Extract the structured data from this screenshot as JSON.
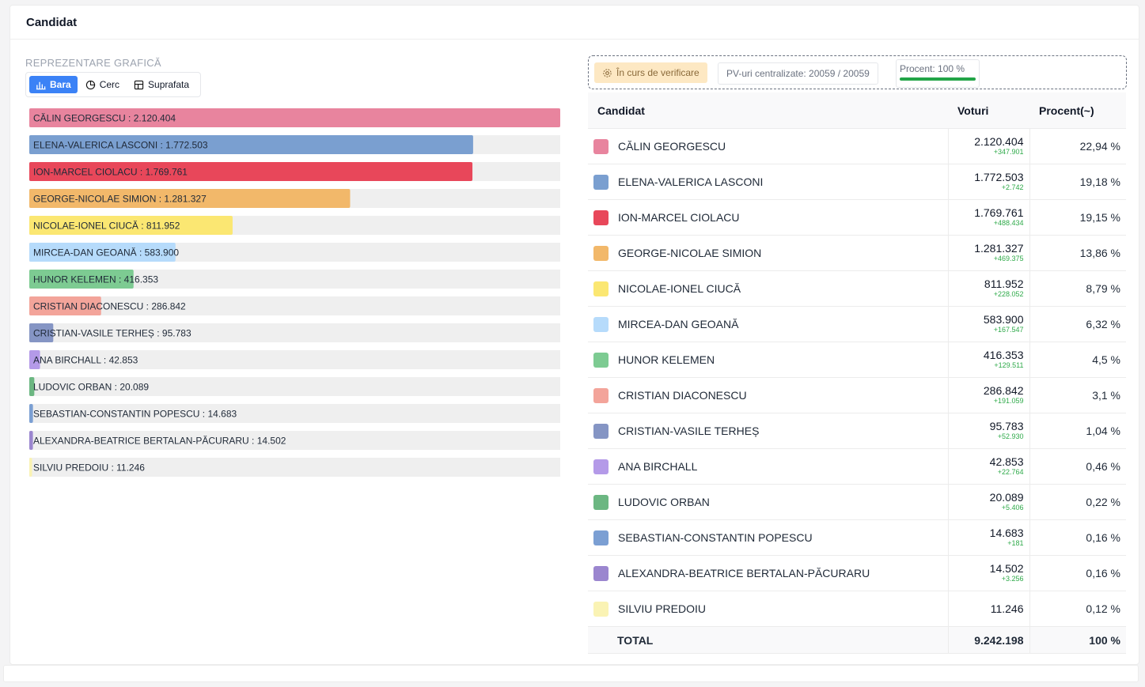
{
  "header": {
    "title": "Candidat"
  },
  "left": {
    "section_label": "REPREZENTARE GRAFICĂ",
    "view_buttons": [
      {
        "label": "Bara",
        "icon": "bar-chart-icon",
        "active": true
      },
      {
        "label": "Cerc",
        "icon": "pie-chart-icon",
        "active": false
      },
      {
        "label": "Suprafata",
        "icon": "grid-icon",
        "active": false
      }
    ]
  },
  "status": {
    "verification_label": "În curs de verificare",
    "pv_label": "PV-uri centralizate: 20059 / 20059",
    "percent_label": "Procent: 100 %",
    "percent_value": 100
  },
  "table": {
    "headers": {
      "candidate": "Candidat",
      "votes": "Voturi",
      "percent": "Procent(~)"
    },
    "rows": [
      {
        "name": "CĂLIN GEORGESCU",
        "votes": "2.120.404",
        "delta": "+347.901",
        "percent": "22,94 %",
        "color": "#e8849e"
      },
      {
        "name": "ELENA-VALERICA LASCONI",
        "votes": "1.772.503",
        "delta": "+2.742",
        "percent": "19,18 %",
        "color": "#7a9fd0"
      },
      {
        "name": "ION-MARCEL CIOLACU",
        "votes": "1.769.761",
        "delta": "+488.434",
        "percent": "19,15 %",
        "color": "#e8475a"
      },
      {
        "name": "GEORGE-NICOLAE SIMION",
        "votes": "1.281.327",
        "delta": "+469.375",
        "percent": "13,86 %",
        "color": "#f2b86a"
      },
      {
        "name": "NICOLAE-IONEL CIUCĂ",
        "votes": "811.952",
        "delta": "+228.052",
        "percent": "8,79 %",
        "color": "#fbe772"
      },
      {
        "name": "MIRCEA-DAN GEOANĂ",
        "votes": "583.900",
        "delta": "+167.547",
        "percent": "6,32 %",
        "color": "#b6dbfb"
      },
      {
        "name": "HUNOR KELEMEN",
        "votes": "416.353",
        "delta": "+129.511",
        "percent": "4,5 %",
        "color": "#7dcb92"
      },
      {
        "name": "CRISTIAN DIACONESCU",
        "votes": "286.842",
        "delta": "+191.059",
        "percent": "3,1 %",
        "color": "#f3a49a"
      },
      {
        "name": "CRISTIAN-VASILE TERHEȘ",
        "votes": "95.783",
        "delta": "+52.930",
        "percent": "1,04 %",
        "color": "#8595c4"
      },
      {
        "name": "ANA BIRCHALL",
        "votes": "42.853",
        "delta": "+22.764",
        "percent": "0,46 %",
        "color": "#b49ae8"
      },
      {
        "name": "LUDOVIC ORBAN",
        "votes": "20.089",
        "delta": "+5.406",
        "percent": "0,22 %",
        "color": "#6cb782"
      },
      {
        "name": "SEBASTIAN-CONSTANTIN POPESCU",
        "votes": "14.683",
        "delta": "+181",
        "percent": "0,16 %",
        "color": "#7b9fd3"
      },
      {
        "name": "ALEXANDRA-BEATRICE BERTALAN-PĂCURARU",
        "votes": "14.502",
        "delta": "+3.256",
        "percent": "0,16 %",
        "color": "#9b86cf"
      },
      {
        "name": "SILVIU PREDOIU",
        "votes": "11.246",
        "delta": "",
        "percent": "0,12 %",
        "color": "#faf3b4"
      }
    ],
    "total": {
      "label": "TOTAL",
      "votes": "9.242.198",
      "percent": "100 %"
    }
  },
  "chart_data": {
    "type": "bar",
    "orientation": "horizontal",
    "title": "",
    "xlabel": "",
    "ylabel": "",
    "categories": [
      "CĂLIN GEORGESCU",
      "ELENA-VALERICA LASCONI",
      "ION-MARCEL CIOLACU",
      "GEORGE-NICOLAE SIMION",
      "NICOLAE-IONEL CIUCĂ",
      "MIRCEA-DAN GEOANĂ",
      "HUNOR KELEMEN",
      "CRISTIAN DIACONESCU",
      "CRISTIAN-VASILE TERHEȘ",
      "ANA BIRCHALL",
      "LUDOVIC ORBAN",
      "SEBASTIAN-CONSTANTIN POPESCU",
      "ALEXANDRA-BEATRICE BERTALAN-PĂCURARU",
      "SILVIU PREDOIU"
    ],
    "values": [
      2120404,
      1772503,
      1769761,
      1281327,
      811952,
      583900,
      416353,
      286842,
      95783,
      42853,
      20089,
      14683,
      14502,
      11246
    ],
    "labels": [
      "CĂLIN GEORGESCU : 2.120.404",
      "ELENA-VALERICA LASCONI : 1.772.503",
      "ION-MARCEL CIOLACU : 1.769.761",
      "GEORGE-NICOLAE SIMION : 1.281.327",
      "NICOLAE-IONEL CIUCĂ : 811.952",
      "MIRCEA-DAN GEOANĂ : 583.900",
      "HUNOR KELEMEN : 416.353",
      "CRISTIAN DIACONESCU : 286.842",
      "CRISTIAN-VASILE TERHEȘ : 95.783",
      "ANA BIRCHALL : 42.853",
      "LUDOVIC ORBAN : 20.089",
      "SEBASTIAN-CONSTANTIN POPESCU : 14.683",
      "ALEXANDRA-BEATRICE BERTALAN-PĂCURARU : 14.502",
      "SILVIU PREDOIU : 11.246"
    ],
    "colors": [
      "#e8849e",
      "#7a9fd0",
      "#e8475a",
      "#f2b86a",
      "#fbe772",
      "#b6dbfb",
      "#7dcb92",
      "#f3a49a",
      "#8595c4",
      "#b49ae8",
      "#6cb782",
      "#7b9fd3",
      "#9b86cf",
      "#faf3b4"
    ],
    "xlim": [
      0,
      2120404
    ],
    "grid": false,
    "legend": "none"
  }
}
